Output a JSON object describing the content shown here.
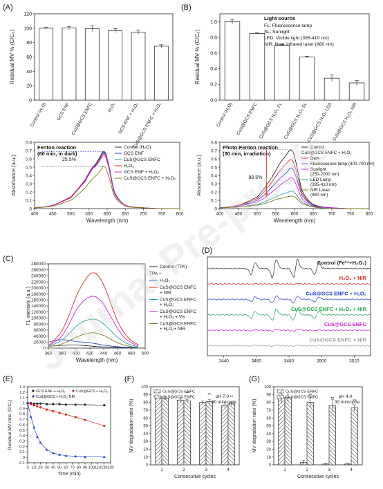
{
  "watermark": "Journal Pre-proofs",
  "chart_data": [
    {
      "panel": "(A)",
      "type": "bar",
      "categories": [
        "Control (H₂O)",
        "GCS ENF",
        "CuS@GCS ENFC",
        "H₂O₂",
        "GCS ENF + H₂O₂",
        "CuS@GCS ENFC + H₂O₂"
      ],
      "values": [
        100,
        100.5,
        99.5,
        96.5,
        94.5,
        75
      ],
      "errors": [
        1.5,
        2,
        4,
        3,
        3,
        2
      ],
      "ylabel": "Residual MV % (C/C₀)",
      "ylim": [
        0,
        120
      ],
      "yticks": [
        0,
        20,
        40,
        60,
        80,
        100,
        120
      ]
    },
    {
      "panel": "(B)",
      "type": "bar",
      "categories": [
        "Control (H₂O)",
        "CuS@GCS ENFC",
        "CuS@GCS H₂O₂ FL",
        "CuS@GCS H₂O₂ SL",
        "CuS@GCS H₂O₂ LED",
        "CuS@GCS H₂O₂ NIR"
      ],
      "values": [
        1.0,
        0.85,
        0.7,
        0.55,
        0.28,
        0.22
      ],
      "errors": [
        0.03,
        0.01,
        0.01,
        0.01,
        0.04,
        0.03
      ],
      "ylabel": "Residual MV % (C/C₀)",
      "ylim": [
        0,
        1.1
      ],
      "yticks": [
        0,
        0.2,
        0.4,
        0.6,
        0.8,
        1.0
      ],
      "legend_title": "Light source",
      "legend_lines": [
        "FL: Fluorescence lamp",
        "SL: Sunlight",
        "LED: Visible light (395-410 nm)",
        "NIR: Near infrared laser (980 nm)"
      ]
    },
    {
      "panel": "",
      "type": "line",
      "annotation_title": "Fenton reaction",
      "annotation_sub": "(60 min, in dark)",
      "annotation_pct": "25.5%",
      "xlabel": "Wavelength (nm)",
      "ylabel": "Absorbance (a.u.)",
      "xlim": [
        400,
        800
      ],
      "xticks": [
        400,
        450,
        500,
        550,
        600,
        650,
        700,
        750,
        800
      ],
      "ylim": [
        0,
        0.8
      ],
      "yticks": [
        0,
        0.1,
        0.2,
        0.3,
        0.4,
        0.5,
        0.6,
        0.7,
        0.8
      ],
      "x": [
        400,
        450,
        500,
        520,
        540,
        550,
        560,
        570,
        580,
        590,
        600,
        620,
        650,
        700,
        750,
        800
      ],
      "series": [
        {
          "name": "Control (H₂O)",
          "color": "#222222",
          "values": [
            0.01,
            0.04,
            0.14,
            0.24,
            0.35,
            0.43,
            0.5,
            0.55,
            0.62,
            0.69,
            0.6,
            0.2,
            0.04,
            0.01,
            0.0,
            0.0
          ]
        },
        {
          "name": "GCS ENF",
          "color": "#1f3fd1",
          "values": [
            0.01,
            0.04,
            0.14,
            0.24,
            0.35,
            0.43,
            0.5,
            0.54,
            0.61,
            0.68,
            0.59,
            0.2,
            0.04,
            0.01,
            0.0,
            0.0
          ]
        },
        {
          "name": "CuS@GCS ENFC",
          "color": "#1fa0a8",
          "values": [
            0.01,
            0.04,
            0.14,
            0.24,
            0.34,
            0.42,
            0.49,
            0.54,
            0.6,
            0.67,
            0.58,
            0.19,
            0.04,
            0.01,
            0.0,
            0.0
          ]
        },
        {
          "name": "H₂O₂",
          "color": "#e02020",
          "values": [
            0.01,
            0.04,
            0.14,
            0.24,
            0.34,
            0.42,
            0.49,
            0.53,
            0.6,
            0.66,
            0.58,
            0.19,
            0.04,
            0.01,
            0.0,
            0.0
          ]
        },
        {
          "name": "GCS ENF + H₂O₂",
          "color": "#d020d0",
          "values": [
            0.01,
            0.04,
            0.13,
            0.23,
            0.33,
            0.41,
            0.48,
            0.52,
            0.58,
            0.64,
            0.56,
            0.18,
            0.04,
            0.01,
            0.0,
            0.0
          ]
        },
        {
          "name": "CuS@GCS ENFC + H₂O₂",
          "color": "#7a7a10",
          "values": [
            0.01,
            0.03,
            0.1,
            0.17,
            0.25,
            0.31,
            0.36,
            0.4,
            0.45,
            0.51,
            0.44,
            0.15,
            0.03,
            0.01,
            0.0,
            0.0
          ]
        }
      ]
    },
    {
      "panel": "",
      "type": "line",
      "annotation_title": "Photo-Fenton reaction",
      "annotation_sub": "(30 min, irradiation)",
      "annotation_pct": "88.5%",
      "legend_group": "CuS@GCS ENFC + H₂O₂",
      "xlabel": "Wavelength (nm)",
      "ylabel": "Absorbance (a.u.)",
      "xlim": [
        400,
        800
      ],
      "xticks": [
        400,
        450,
        500,
        550,
        600,
        650,
        700,
        750,
        800
      ],
      "ylim": [
        0,
        0.8
      ],
      "yticks": [
        0,
        0.1,
        0.2,
        0.3,
        0.4,
        0.5,
        0.6,
        0.7,
        0.8
      ],
      "x": [
        400,
        450,
        500,
        520,
        540,
        550,
        560,
        570,
        580,
        590,
        600,
        620,
        650,
        700,
        750,
        800
      ],
      "series": [
        {
          "name": "Control",
          "color": "#222222",
          "values": [
            0.01,
            0.04,
            0.14,
            0.25,
            0.38,
            0.46,
            0.54,
            0.6,
            0.66,
            0.71,
            0.62,
            0.22,
            0.05,
            0.01,
            0.0,
            0.0
          ]
        },
        {
          "name": "Dark",
          "color": "#e02020",
          "values": [
            0.01,
            0.04,
            0.12,
            0.21,
            0.32,
            0.39,
            0.45,
            0.5,
            0.55,
            0.59,
            0.52,
            0.19,
            0.04,
            0.01,
            0.0,
            0.0
          ]
        },
        {
          "name": "Fluorescence lamp (400-700 nm)",
          "color": "#1f3fd1",
          "values": [
            0.01,
            0.03,
            0.1,
            0.17,
            0.26,
            0.31,
            0.36,
            0.4,
            0.44,
            0.49,
            0.43,
            0.16,
            0.04,
            0.01,
            0.0,
            0.0
          ]
        },
        {
          "name": "Sunlight (250-2000 nm)",
          "color": "#d020d0",
          "values": [
            0.01,
            0.03,
            0.08,
            0.13,
            0.2,
            0.24,
            0.28,
            0.31,
            0.34,
            0.37,
            0.33,
            0.12,
            0.03,
            0.01,
            0.0,
            0.0
          ]
        },
        {
          "name": "LED Lamp (395-410 nm)",
          "color": "#1fa0a8",
          "values": [
            0.01,
            0.02,
            0.05,
            0.08,
            0.12,
            0.14,
            0.16,
            0.18,
            0.19,
            0.21,
            0.19,
            0.08,
            0.02,
            0.0,
            0.0,
            0.0
          ]
        },
        {
          "name": "NIR Laser (980 nm)",
          "color": "#7a7a10",
          "values": [
            0.01,
            0.02,
            0.04,
            0.06,
            0.09,
            0.11,
            0.12,
            0.13,
            0.14,
            0.15,
            0.14,
            0.06,
            0.02,
            0.0,
            0.0,
            0.0
          ]
        }
      ]
    },
    {
      "panel": "(C)",
      "type": "line",
      "xlabel": "Wavelength (nm)",
      "ylabel": "FL intensity (a.u.)",
      "xlim": [
        360,
        500
      ],
      "xticks": [
        360,
        380,
        400,
        420,
        440,
        460,
        480,
        500
      ],
      "ylim": [
        0,
        280000
      ],
      "yticks": [
        0,
        20000,
        40000,
        60000,
        80000,
        100000,
        120000,
        140000,
        160000,
        180000,
        200000,
        220000,
        240000,
        260000,
        280000
      ],
      "legend_group": "TPA +",
      "x": [
        360,
        370,
        380,
        390,
        400,
        410,
        420,
        425,
        430,
        440,
        450,
        460,
        470,
        480,
        490
      ],
      "series": [
        {
          "name": "Control (TPA)",
          "color": "#222222",
          "values": [
            6000,
            8000,
            9000,
            10000,
            10000,
            9000,
            7000,
            6000,
            5000,
            4000,
            3000,
            2000,
            1500,
            1000,
            800
          ]
        },
        {
          "name": "H₂O₂",
          "color": "#1f3fd1",
          "values": [
            20000,
            26000,
            28000,
            26000,
            22000,
            20000,
            18000,
            16000,
            14000,
            10000,
            7000,
            5000,
            3000,
            2000,
            1000
          ]
        },
        {
          "name": "CuS@GCS ENFC + NIR",
          "color": "#e02020",
          "values": [
            10000,
            30000,
            60000,
            110000,
            170000,
            215000,
            245000,
            250000,
            245000,
            210000,
            150000,
            90000,
            50000,
            25000,
            12000
          ]
        },
        {
          "name": "CuS@GCS ENFC + H₂O₂",
          "color": "#1fa0a8",
          "values": [
            8000,
            15000,
            28000,
            48000,
            72000,
            88000,
            95000,
            96000,
            94000,
            80000,
            58000,
            36000,
            20000,
            10000,
            5000
          ]
        },
        {
          "name": "CuS@GCS ENFC + H₂O₂ + Vis",
          "color": "#d020d0",
          "values": [
            9000,
            22000,
            42000,
            80000,
            125000,
            155000,
            170000,
            172000,
            168000,
            145000,
            105000,
            65000,
            35000,
            18000,
            8000
          ]
        },
        {
          "name": "CuS@GCS ENFC + H₂O₂ + NIR",
          "color": "#7a7a10",
          "values": [
            5000,
            8000,
            14000,
            24000,
            36000,
            45000,
            50000,
            51000,
            49000,
            42000,
            30000,
            18000,
            10000,
            5000,
            2000
          ]
        }
      ]
    },
    {
      "panel": "(D)",
      "type": "line",
      "xticks": [
        3440,
        3460,
        3480,
        3500,
        3520
      ],
      "xlim": [
        3430,
        3530
      ],
      "traces": [
        {
          "label": "Control (Fe²⁺+H₂O₂)",
          "color": "#222222"
        },
        {
          "label": "H₂O₂ + NIR",
          "color": "#e02020"
        },
        {
          "label": "CuS@GCS ENFC + H₂O₂",
          "color": "#1f3fd1"
        },
        {
          "label": "CuS@GCS ENFC + H₂O₂ + NIR",
          "color": "#1aa64a"
        },
        {
          "label": "CuS@GCS ENFC",
          "color": "#d020d0"
        },
        {
          "label": "CuS@GCS ENFC + NIR",
          "color": "#9a9a9a"
        }
      ],
      "peaks": [
        3458,
        3471,
        3484,
        3497
      ],
      "amplitudes": [
        0.9,
        0.05,
        0.35,
        0.55,
        0.1,
        0.05
      ]
    },
    {
      "panel": "(E)",
      "type": "line",
      "xlabel": "Time (min)",
      "ylabel": "Residual MV ratio (C/C₀)",
      "xlim": [
        0,
        130
      ],
      "xticks": [
        0,
        10,
        20,
        30,
        40,
        50,
        60,
        70,
        80,
        90,
        100,
        110,
        120,
        130
      ],
      "ylim": [
        -0.1,
        1.3
      ],
      "yticks": [
        -0.1,
        0.0,
        0.1,
        0.2,
        0.3,
        0.4,
        0.5,
        0.6,
        0.7,
        0.8,
        0.9,
        1.0,
        1.1,
        1.2,
        1.3
      ],
      "x": [
        0,
        5,
        10,
        15,
        20,
        30,
        40,
        50,
        60,
        75,
        90,
        120
      ],
      "series": [
        {
          "name": "GCS ENF + H₂O₂",
          "color": "#222222",
          "values": [
            1.0,
            1.0,
            0.99,
            0.99,
            0.99,
            0.98,
            0.98,
            0.98,
            0.97,
            0.97,
            0.97,
            0.96
          ]
        },
        {
          "name": "CuS@GCS + H₂O₂",
          "color": "#e02020",
          "values": [
            1.0,
            0.98,
            0.96,
            0.94,
            0.92,
            0.88,
            0.85,
            0.82,
            0.79,
            0.74,
            0.69,
            0.58
          ]
        },
        {
          "name": "CuS@GCS + H₂O₂ NIR",
          "color": "#1f3fd1",
          "values": [
            1.0,
            0.75,
            0.55,
            0.38,
            0.27,
            0.14,
            0.08,
            0.05,
            0.03,
            0.02,
            0.01,
            0.01
          ]
        }
      ]
    },
    {
      "panel": "(F)",
      "type": "bar",
      "note_line1": "pH 7.0",
      "note_line2": "30 min/cycle",
      "xlabel": "Consecutive cycles",
      "ylabel": "MV degradation ratio (%)",
      "categories": [
        "1",
        "2",
        "3",
        "4"
      ],
      "ylim": [
        0,
        100
      ],
      "yticks": [
        0,
        10,
        20,
        30,
        40,
        50,
        60,
        70,
        80,
        90,
        100
      ],
      "series": [
        {
          "name": "CuS@GCS ENFC",
          "values": [
            87,
            83,
            80,
            76
          ],
          "errors": [
            2,
            3,
            2,
            3
          ]
        },
        {
          "name": "CuS@GCS ENFC",
          "values": [
            85,
            82,
            81,
            78
          ],
          "errors": [
            2,
            2,
            3,
            2
          ]
        }
      ],
      "significance": [
        "",
        "**",
        "**",
        "**"
      ]
    },
    {
      "panel": "(G)",
      "type": "bar",
      "note_line1": "pH 4.0",
      "note_line2": "30 min/cycle",
      "xlabel": "Consecutive cycles",
      "ylabel": "MV degradation ratio (%)",
      "categories": [
        "1",
        "2",
        "3",
        "4"
      ],
      "ylim": [
        0,
        100
      ],
      "yticks": [
        0,
        10,
        20,
        30,
        40,
        50,
        60,
        70,
        80,
        90,
        100
      ],
      "series": [
        {
          "name": "CuS@GCS ENFC",
          "values": [
            86,
            3,
            1,
            1
          ],
          "errors": [
            6,
            3,
            1,
            1
          ]
        },
        {
          "name": "CuS@GCS ENFC",
          "values": [
            86,
            80,
            76,
            73
          ],
          "errors": [
            5,
            6,
            8,
            4
          ]
        }
      ],
      "significance": [
        "",
        "**",
        "**",
        "**"
      ]
    }
  ]
}
